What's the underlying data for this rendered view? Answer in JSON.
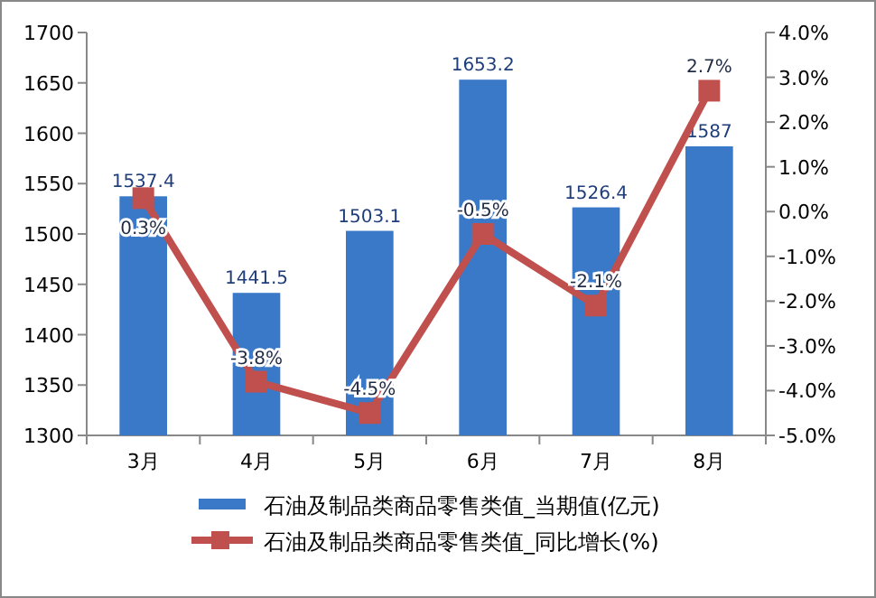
{
  "chart_data": {
    "type": "bar",
    "categories": [
      "3月",
      "4月",
      "5月",
      "6月",
      "7月",
      "8月"
    ],
    "series": [
      {
        "name": "石油及制品类商品零售类值_当期值(亿元)",
        "color": "#3a78c8",
        "values": [
          1537.4,
          1441.5,
          1503.1,
          1653.2,
          1526.4,
          1587
        ],
        "value_labels": [
          "1537.4",
          "1441.5",
          "1503.1",
          "1653.2",
          "1526.4",
          "1587"
        ]
      },
      {
        "name": "石油及制品类商品零售类值_同比增长(%)",
        "type": "line",
        "axis": "y2",
        "color": "#c0504d",
        "marker": "square",
        "values": [
          0.3,
          -3.8,
          -4.5,
          -0.5,
          -2.1,
          2.7
        ],
        "value_labels": [
          "0.3%",
          "-3.8%",
          "-4.5%",
          "-0.5%",
          "-2.1%",
          "2.7%"
        ]
      }
    ],
    "ylim": [
      1300,
      1700
    ],
    "yticks": [
      1300,
      1350,
      1400,
      1450,
      1500,
      1550,
      1600,
      1650,
      1700
    ],
    "y2lim": [
      -5,
      4
    ],
    "y2ticks": [
      {
        "value": -5,
        "label": "-5.0%"
      },
      {
        "value": -4,
        "label": "-4.0%"
      },
      {
        "value": -3,
        "label": "-3.0%"
      },
      {
        "value": -2,
        "label": "-2.0%"
      },
      {
        "value": -1,
        "label": "-1.0%"
      },
      {
        "value": 0,
        "label": "0.0%"
      },
      {
        "value": 1,
        "label": "1.0%"
      },
      {
        "value": 2,
        "label": "2.0%"
      },
      {
        "value": 3,
        "label": "3.0%"
      },
      {
        "value": 4,
        "label": "4.0%"
      }
    ],
    "grid": false,
    "legend": "bottom"
  }
}
